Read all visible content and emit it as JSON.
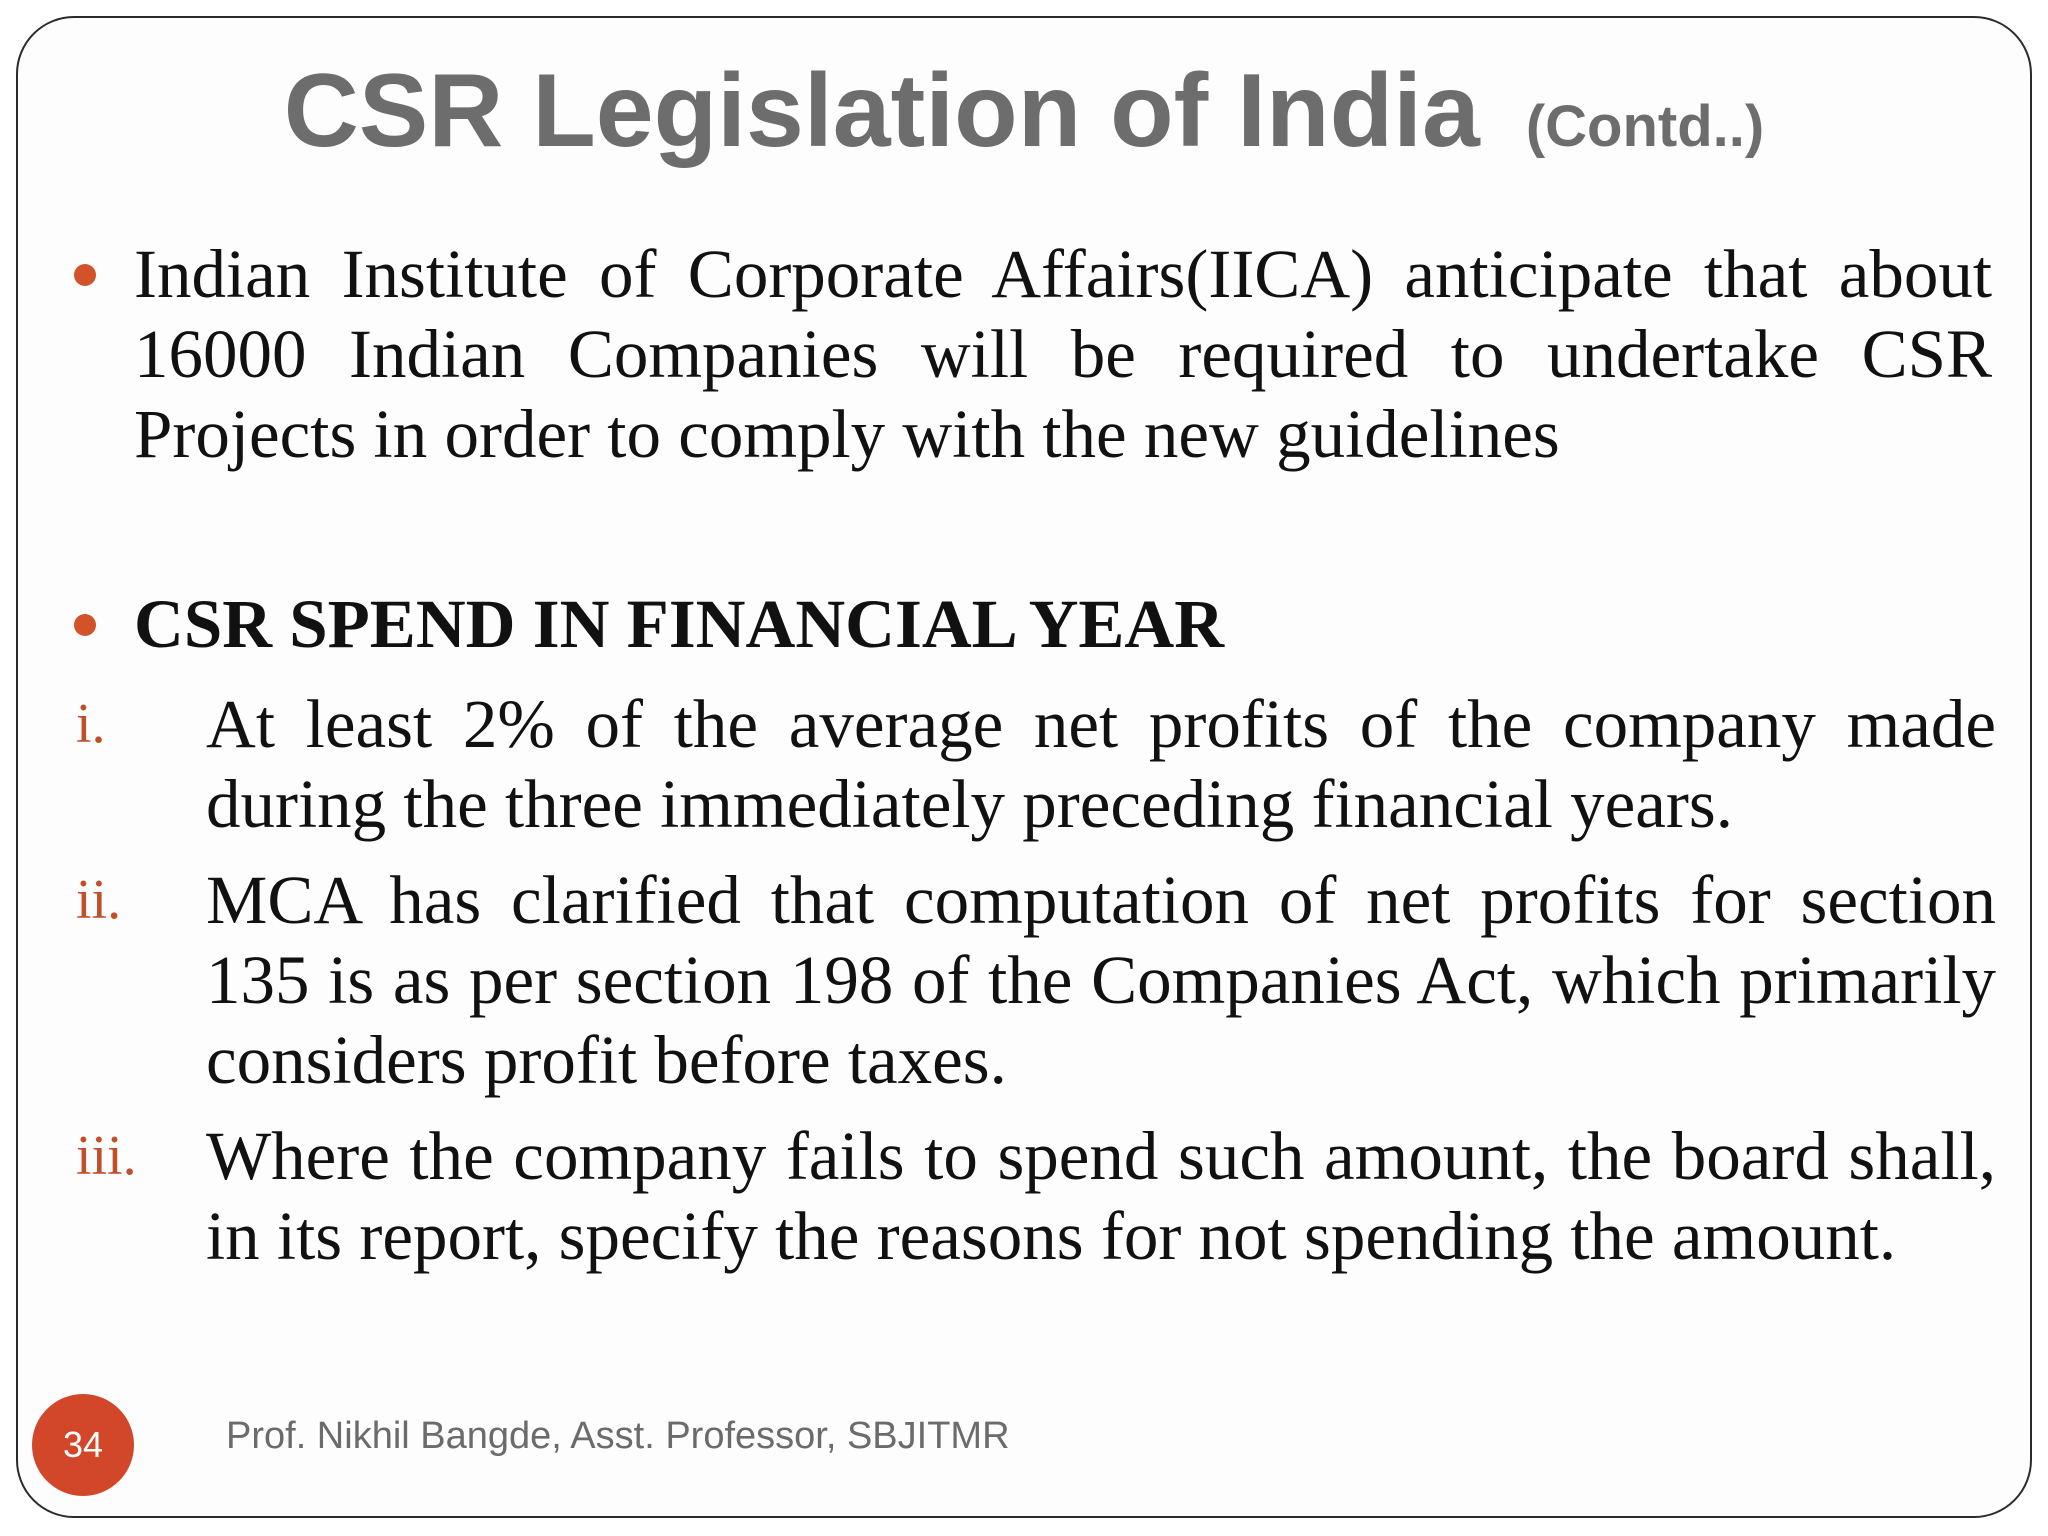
{
  "slide": {
    "title": "CSR Legislation of India",
    "title_suffix": "(Contd..)",
    "bullets": [
      {
        "text": "Indian Institute of Corporate Affairs(IICA) anticipate that about 16000 Indian Companies will be required to undertake CSR Projects in order to comply with the new guidelines"
      },
      {
        "heading": "CSR SPEND IN FINANCIAL YEAR"
      }
    ],
    "numbered_items": [
      {
        "label": "i.",
        "text": "At least 2% of the average net profits of the company made during the three immediately preceding financial years."
      },
      {
        "label": "ii.",
        "text": "MCA has clarified that computation of net profits for section 135 is as per section 198 of the Companies Act, which primarily considers profit before taxes."
      },
      {
        "label": "iii.",
        "text": "Where the company fails to spend such amount, the board shall, in its report, specify the reasons for not spending the amount."
      }
    ],
    "page_number": "34",
    "footer": "Prof. Nikhil Bangde, Asst. Professor, SBJITMR"
  },
  "colors": {
    "accent": "#d2522a",
    "title": "#6d6d6d",
    "body_text": "#111111",
    "footer_text": "#6b6b6b"
  }
}
